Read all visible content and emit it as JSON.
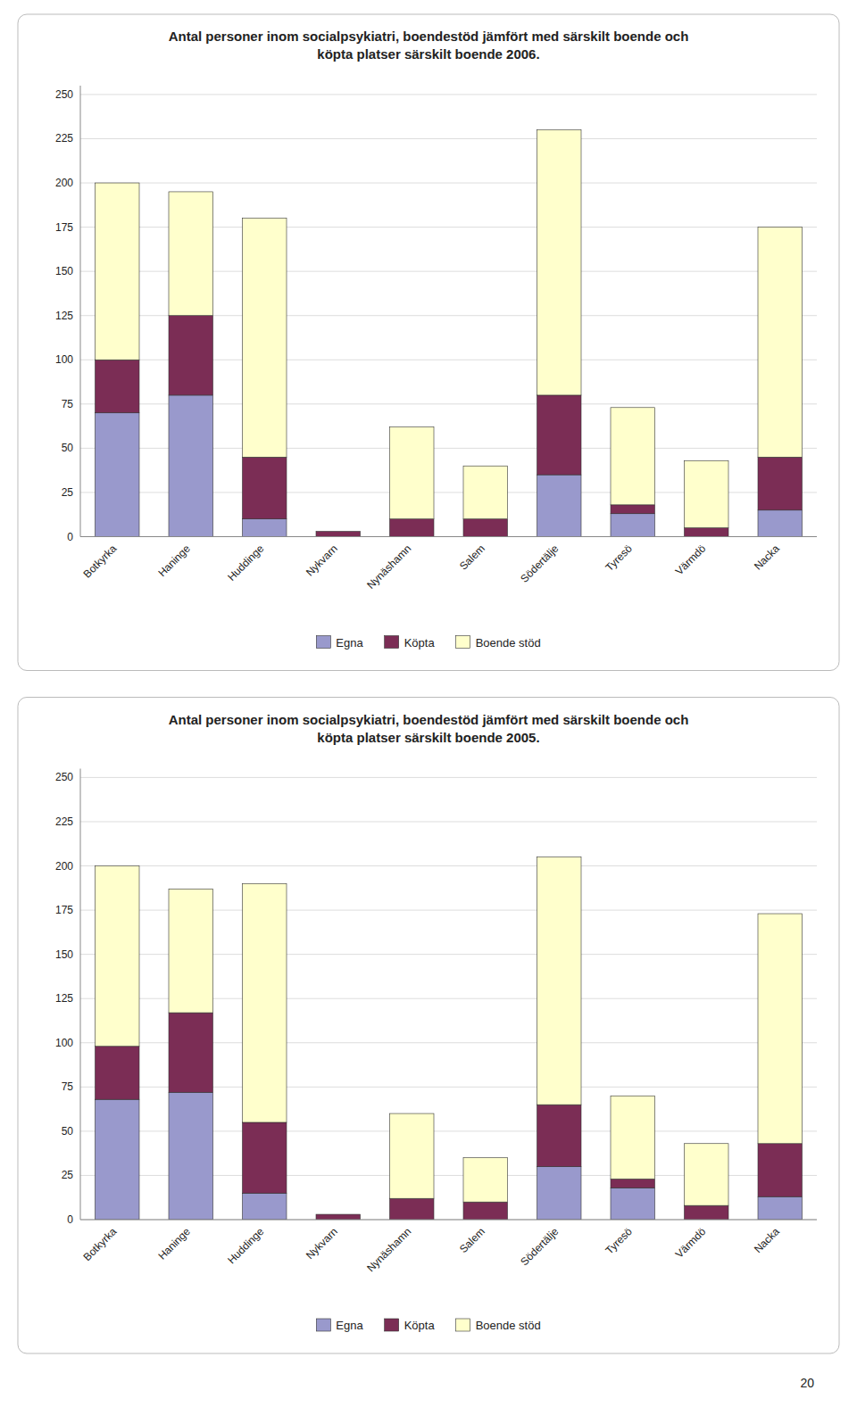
{
  "chart_data": [
    {
      "type": "bar",
      "stacked": true,
      "title": "Antal personer inom socialpsykiatri, boendestöd jämfört med särskilt boende och\nköpta platser särskilt boende 2006.",
      "categories": [
        "Botkyrka",
        "Haninge",
        "Huddinge",
        "Nykvarn",
        "Nynäshamn",
        "Salem",
        "Södertälje",
        "Tyresö",
        "Värmdö",
        "Nacka"
      ],
      "series": [
        {
          "name": "Egna",
          "color": "#9999cc",
          "values": [
            70,
            80,
            10,
            0,
            0,
            0,
            35,
            13,
            0,
            15
          ]
        },
        {
          "name": "Köpta",
          "color": "#7b2d55",
          "values": [
            30,
            45,
            35,
            3,
            10,
            10,
            45,
            5,
            5,
            30
          ]
        },
        {
          "name": "Boende stöd",
          "color": "#ffffcc",
          "values": [
            100,
            70,
            135,
            0,
            52,
            30,
            150,
            55,
            38,
            130
          ]
        }
      ],
      "ylim": [
        0,
        255
      ],
      "yticks": [
        0,
        25,
        50,
        75,
        100,
        125,
        150,
        175,
        200,
        225,
        250
      ],
      "grid": true,
      "legend": "bottom"
    },
    {
      "type": "bar",
      "stacked": true,
      "title": "Antal personer inom socialpsykiatri, boendestöd jämfört med särskilt boende och\nköpta platser särskilt boende 2005.",
      "categories": [
        "Botkyrka",
        "Haninge",
        "Huddinge",
        "Nykvarn",
        "Nynäshamn",
        "Salem",
        "Södertälje",
        "Tyresö",
        "Värmdö",
        "Nacka"
      ],
      "series": [
        {
          "name": "Egna",
          "color": "#9999cc",
          "values": [
            68,
            72,
            15,
            0,
            0,
            0,
            30,
            18,
            0,
            13
          ]
        },
        {
          "name": "Köpta",
          "color": "#7b2d55",
          "values": [
            30,
            45,
            40,
            3,
            12,
            10,
            35,
            5,
            8,
            30
          ]
        },
        {
          "name": "Boende stöd",
          "color": "#ffffcc",
          "values": [
            102,
            70,
            135,
            0,
            48,
            25,
            140,
            47,
            35,
            130
          ]
        }
      ],
      "ylim": [
        0,
        255
      ],
      "yticks": [
        0,
        25,
        50,
        75,
        100,
        125,
        150,
        175,
        200,
        225,
        250
      ],
      "grid": true,
      "legend": "bottom",
      "annotations": [
        "20"
      ]
    }
  ]
}
